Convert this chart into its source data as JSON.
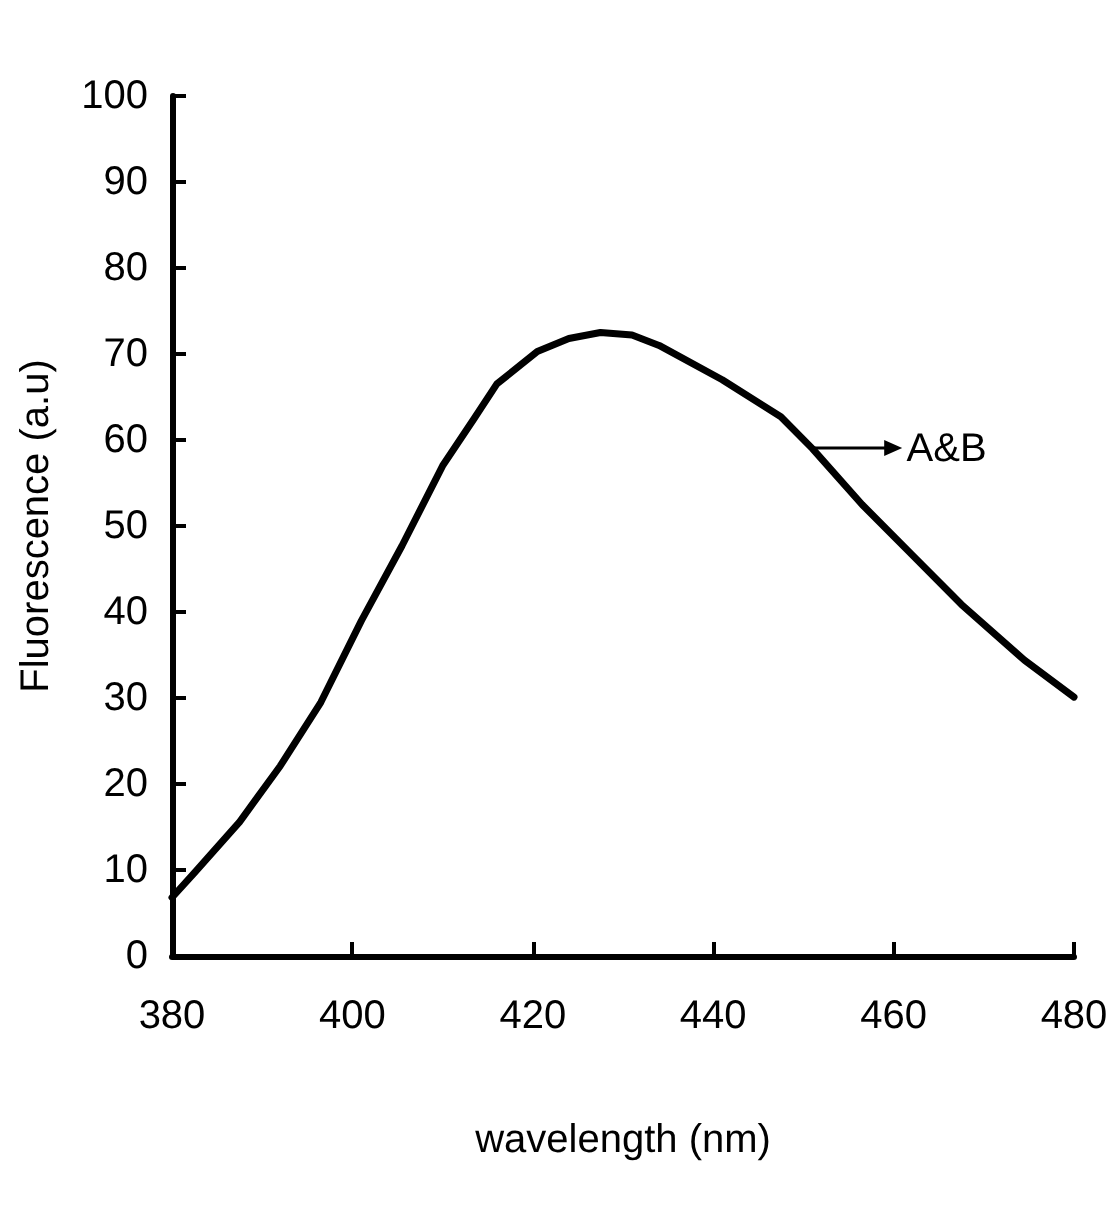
{
  "chart_data": {
    "type": "line",
    "xlabel": "wavelength (nm)",
    "ylabel": "Fluorescence (a.u)",
    "x": [
      380,
      382.5,
      387.5,
      392,
      396.5,
      401,
      405.5,
      410,
      413.5,
      416,
      420.5,
      424,
      427.5,
      431,
      434,
      441,
      447.5,
      451,
      456.5,
      462,
      467.5,
      474.5,
      480
    ],
    "series": [
      {
        "color": "#000000",
        "values": [
          6.8,
          9.7,
          15.6,
          22.1,
          29.5,
          39,
          47.7,
          57,
          62.5,
          66.5,
          70.3,
          71.8,
          72.5,
          72.2,
          71,
          67,
          62.7,
          59,
          52.5,
          46.7,
          40.9,
          34.4,
          30.1
        ]
      }
    ],
    "xlim": [
      380,
      480
    ],
    "xticks": [
      380,
      400,
      420,
      440,
      460,
      480
    ],
    "ylim": [
      0,
      100
    ],
    "yticks": [
      0,
      10,
      20,
      30,
      40,
      50,
      60,
      70,
      80,
      90,
      100
    ],
    "annotations": [
      {
        "text": "A&B",
        "x": 451,
        "y": 59
      }
    ],
    "grid": false,
    "marker": "none",
    "line_style": "solid"
  }
}
